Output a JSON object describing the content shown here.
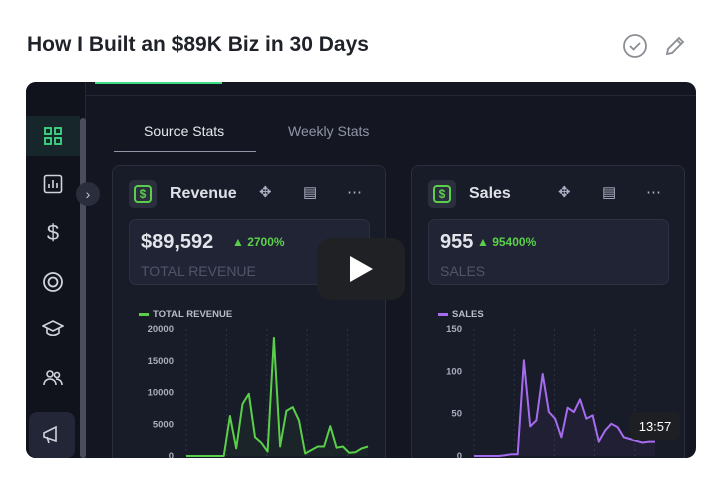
{
  "title": "How I Built an $89K Biz in 30 Days",
  "header_icons": [
    "check-circle-icon",
    "pencil-icon"
  ],
  "sidebar": {
    "items": [
      "grid-icon",
      "bar-chart-icon",
      "dollar-icon",
      "target-icon",
      "graduation-cap-icon",
      "users-icon",
      "megaphone-icon"
    ]
  },
  "tabs": [
    "Source Stats",
    "Weekly Stats"
  ],
  "cards": [
    {
      "title": "Revenue",
      "value": "$89,592",
      "delta": "▲ 2700%",
      "label": "TOTAL REVENUE",
      "color": "#5ad04a"
    },
    {
      "title": "Sales",
      "value": "955",
      "delta": "▲ 95400%",
      "label": "SALES",
      "color": "#a66cf0"
    }
  ],
  "video": {
    "duration": "13:57",
    "accent": "#3ddc84"
  },
  "chart_data": [
    {
      "type": "area",
      "legend": "TOTAL REVENUE",
      "ylim": [
        0,
        20000
      ],
      "yticks": [
        "20000",
        "15000",
        "10000",
        "5000",
        "0"
      ],
      "color": "#5ad04a",
      "values": [
        0,
        0,
        0,
        0,
        0,
        0,
        0,
        6300,
        1200,
        8200,
        9800,
        2950,
        2100,
        700,
        18600,
        1500,
        7100,
        7700,
        5600,
        400,
        950,
        1500,
        1500,
        4700,
        1300,
        1500,
        500,
        600,
        1200,
        1500
      ]
    },
    {
      "type": "area",
      "legend": "SALES",
      "ylim": [
        0,
        150
      ],
      "yticks": [
        "150",
        "100",
        "50",
        "0"
      ],
      "color": "#a66cf0",
      "values": [
        0,
        0,
        0,
        0,
        0,
        1,
        2,
        2,
        113,
        35,
        42,
        97,
        52,
        44,
        22,
        57,
        52,
        67,
        44,
        48,
        17,
        30,
        38,
        34,
        22,
        20,
        18,
        16,
        17,
        17
      ]
    }
  ]
}
